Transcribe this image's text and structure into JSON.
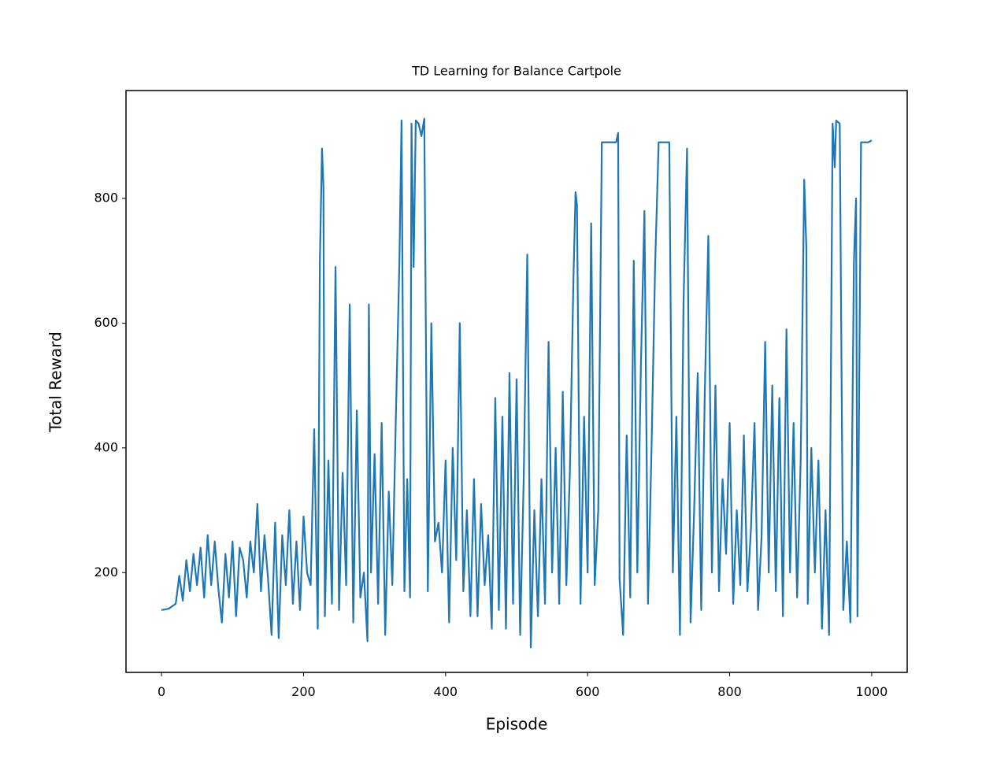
{
  "chart_data": {
    "type": "line",
    "title": "TD Learning for Balance Cartpole",
    "x_label": "Episode",
    "y_label": "Total Reward",
    "xlim": [
      -50,
      1050
    ],
    "ylim": [
      40,
      973
    ],
    "xticks": [
      0,
      200,
      400,
      600,
      800,
      1000
    ],
    "yticks": [
      200,
      400,
      600,
      800
    ],
    "series": [
      {
        "color": "#1f77b4",
        "x": [
          0,
          10,
          20,
          25,
          30,
          35,
          40,
          45,
          50,
          55,
          60,
          65,
          70,
          75,
          80,
          85,
          90,
          95,
          100,
          105,
          110,
          115,
          120,
          125,
          130,
          135,
          140,
          145,
          150,
          155,
          160,
          165,
          170,
          175,
          180,
          185,
          190,
          195,
          200,
          205,
          210,
          215,
          220,
          223,
          226,
          228,
          230,
          235,
          240,
          245,
          250,
          255,
          260,
          265,
          270,
          275,
          280,
          285,
          290,
          292,
          295,
          300,
          305,
          310,
          315,
          320,
          325,
          330,
          335,
          338,
          342,
          346,
          350,
          352,
          355,
          358,
          362,
          366,
          370,
          375,
          380,
          385,
          390,
          395,
          400,
          405,
          410,
          415,
          420,
          425,
          430,
          435,
          440,
          445,
          450,
          455,
          460,
          465,
          470,
          475,
          480,
          485,
          490,
          495,
          500,
          505,
          510,
          515,
          520,
          525,
          530,
          535,
          540,
          545,
          550,
          555,
          560,
          565,
          570,
          575,
          580,
          583,
          585,
          590,
          595,
          600,
          605,
          610,
          615,
          620,
          625,
          630,
          635,
          640,
          643,
          645,
          650,
          655,
          660,
          665,
          670,
          675,
          680,
          685,
          690,
          695,
          700,
          705,
          710,
          715,
          720,
          725,
          730,
          735,
          740,
          745,
          750,
          755,
          760,
          765,
          770,
          775,
          780,
          785,
          790,
          795,
          800,
          805,
          810,
          815,
          820,
          825,
          830,
          835,
          840,
          845,
          850,
          855,
          860,
          865,
          870,
          875,
          880,
          885,
          890,
          895,
          900,
          905,
          908,
          910,
          915,
          920,
          925,
          930,
          935,
          940,
          945,
          948,
          950,
          955,
          960,
          965,
          970,
          975,
          978,
          980,
          985,
          990,
          995,
          1000
        ],
        "values": [
          140,
          142,
          150,
          195,
          155,
          220,
          170,
          230,
          180,
          240,
          160,
          260,
          180,
          250,
          175,
          120,
          230,
          160,
          250,
          130,
          240,
          220,
          160,
          250,
          200,
          310,
          170,
          260,
          190,
          100,
          280,
          95,
          260,
          180,
          300,
          150,
          250,
          140,
          290,
          200,
          180,
          430,
          110,
          700,
          880,
          820,
          130,
          380,
          150,
          690,
          140,
          360,
          180,
          630,
          120,
          460,
          160,
          200,
          90,
          630,
          200,
          390,
          150,
          440,
          100,
          330,
          180,
          450,
          700,
          925,
          170,
          350,
          160,
          920,
          690,
          925,
          920,
          900,
          928,
          170,
          600,
          250,
          280,
          200,
          380,
          120,
          400,
          220,
          600,
          170,
          300,
          130,
          350,
          130,
          310,
          180,
          260,
          110,
          480,
          140,
          450,
          110,
          520,
          150,
          510,
          100,
          350,
          710,
          80,
          300,
          130,
          350,
          150,
          570,
          200,
          400,
          150,
          490,
          180,
          360,
          670,
          810,
          790,
          150,
          450,
          200,
          760,
          180,
          300,
          890,
          890,
          890,
          890,
          890,
          905,
          190,
          100,
          420,
          160,
          700,
          200,
          530,
          780,
          150,
          400,
          690,
          890,
          890,
          890,
          890,
          200,
          450,
          100,
          630,
          880,
          120,
          300,
          520,
          140,
          490,
          740,
          200,
          500,
          170,
          350,
          230,
          440,
          150,
          300,
          180,
          420,
          170,
          270,
          440,
          140,
          260,
          570,
          200,
          500,
          170,
          480,
          130,
          590,
          200,
          440,
          160,
          380,
          830,
          720,
          150,
          400,
          200,
          380,
          110,
          300,
          100,
          920,
          850,
          925,
          920,
          140,
          250,
          120,
          700,
          800,
          130,
          890,
          890,
          890,
          893
        ]
      }
    ]
  }
}
